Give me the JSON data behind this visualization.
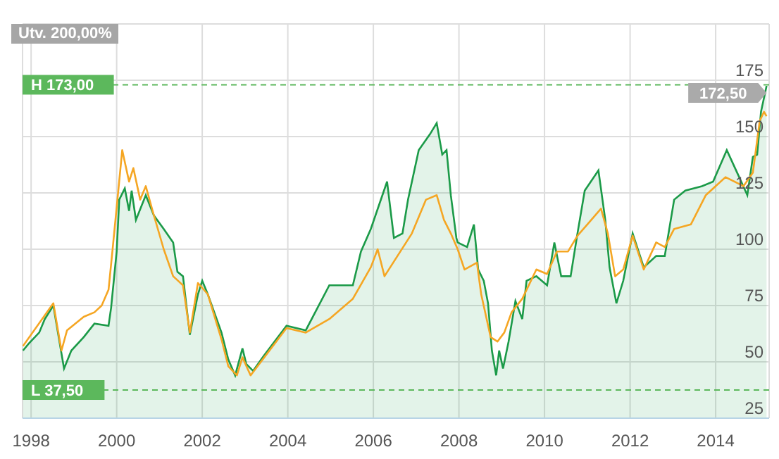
{
  "chart_data": {
    "type": "line",
    "xlim": [
      1997.8,
      2015.25
    ],
    "xticks": [
      1998,
      2000,
      2002,
      2004,
      2006,
      2008,
      2010,
      2012,
      2014
    ],
    "ylim": [
      25,
      200
    ],
    "yticks": [
      25,
      50,
      75,
      100,
      125,
      150,
      175
    ],
    "grid": true,
    "series": [
      {
        "type": "area",
        "color": "#1b9a48",
        "x": [
          1997.81,
          1997.94,
          1998.19,
          1998.32,
          1998.52,
          1998.77,
          1998.94,
          1999.23,
          1999.48,
          1999.81,
          1999.87,
          2000.0,
          2000.06,
          2000.19,
          2000.29,
          2000.35,
          2000.45,
          2000.68,
          2000.87,
          2001.1,
          2001.32,
          2001.42,
          2001.55,
          2001.71,
          2001.9,
          2002.0,
          2002.13,
          2002.45,
          2002.61,
          2002.77,
          2002.94,
          2003.03,
          2003.19,
          2003.45,
          2003.97,
          2004.42,
          2004.97,
          2005.52,
          2005.71,
          2005.94,
          2006.32,
          2006.48,
          2006.68,
          2006.81,
          2007.06,
          2007.32,
          2007.48,
          2007.61,
          2007.71,
          2007.81,
          2007.94,
          2007.97,
          2008.19,
          2008.35,
          2008.45,
          2008.58,
          2008.68,
          2008.77,
          2008.87,
          2008.94,
          2009.03,
          2009.16,
          2009.32,
          2009.48,
          2009.58,
          2009.81,
          2010.06,
          2010.23,
          2010.39,
          2010.61,
          2010.77,
          2010.94,
          2011.26,
          2011.42,
          2011.52,
          2011.68,
          2011.84,
          2012.06,
          2012.32,
          2012.61,
          2012.81,
          2013.03,
          2013.29,
          2013.68,
          2013.94,
          2014.26,
          2014.55,
          2014.74,
          2014.87,
          2014.97,
          2015.06,
          2015.19
        ],
        "values": [
          55,
          58,
          63,
          69,
          75,
          47,
          55,
          61,
          67,
          66,
          74,
          99,
          122,
          127,
          117,
          126,
          113,
          124,
          115,
          109,
          103,
          90,
          88,
          62,
          80,
          86,
          80,
          63,
          51,
          44,
          56,
          49,
          46,
          53,
          66,
          64,
          84,
          84,
          99,
          109,
          130,
          105,
          107,
          122,
          144,
          151,
          156,
          142,
          144,
          124,
          105,
          103,
          101,
          111,
          91,
          86,
          76,
          55,
          44,
          55,
          47,
          59,
          77,
          69,
          86,
          88,
          84,
          103,
          88,
          88,
          107,
          126,
          135,
          113,
          92,
          76,
          86,
          107,
          92,
          97,
          97,
          122,
          126,
          128,
          130,
          144,
          132,
          124,
          141,
          142,
          161,
          172.5
        ]
      },
      {
        "type": "line",
        "color": "#f5a623",
        "x": [
          1997.81,
          1998.52,
          1998.71,
          1998.84,
          1999.23,
          1999.48,
          1999.65,
          1999.81,
          1999.9,
          2000.13,
          2000.29,
          2000.39,
          2000.55,
          2000.68,
          2000.87,
          2001.1,
          2001.32,
          2001.55,
          2001.71,
          2001.9,
          2002.13,
          2002.45,
          2002.61,
          2002.81,
          2002.94,
          2003.13,
          2003.45,
          2003.97,
          2004.42,
          2004.97,
          2005.52,
          2005.94,
          2006.1,
          2006.26,
          2006.9,
          2007.23,
          2007.48,
          2007.65,
          2007.81,
          2007.97,
          2008.13,
          2008.42,
          2008.52,
          2008.74,
          2008.9,
          2009.06,
          2009.23,
          2009.48,
          2009.81,
          2010.06,
          2010.29,
          2010.55,
          2010.77,
          2011.0,
          2011.32,
          2011.48,
          2011.65,
          2011.84,
          2012.06,
          2012.32,
          2012.61,
          2012.81,
          2013.03,
          2013.42,
          2013.77,
          2014.23,
          2014.65,
          2014.87,
          2015.03,
          2015.13,
          2015.19
        ],
        "values": [
          57,
          76,
          55,
          64,
          70,
          72,
          75,
          82,
          99,
          144,
          130,
          136,
          122,
          128,
          115,
          100,
          88,
          84,
          63,
          85,
          80,
          60,
          48,
          44,
          52,
          44,
          52,
          65,
          63,
          69,
          78,
          92,
          100,
          88,
          107,
          122,
          124,
          113,
          107,
          100,
          91,
          94,
          80,
          61,
          59,
          63,
          72,
          78,
          91,
          89,
          99,
          99,
          106,
          111,
          118,
          107,
          88,
          91,
          106,
          91,
          103,
          101,
          109,
          111,
          124,
          132,
          128,
          134,
          157,
          161,
          159
        ]
      }
    ],
    "ref_lines": [
      {
        "axis": "y",
        "value": 173,
        "label": "H 173,00",
        "color": "#5cb85c"
      },
      {
        "axis": "y",
        "value": 37.5,
        "label": "L 37,50",
        "color": "#5cb85c"
      }
    ],
    "annotations": [
      "Utv. 200,00%",
      {
        "text": "172,50",
        "x": 2015.19,
        "y": 172.5
      }
    ]
  }
}
